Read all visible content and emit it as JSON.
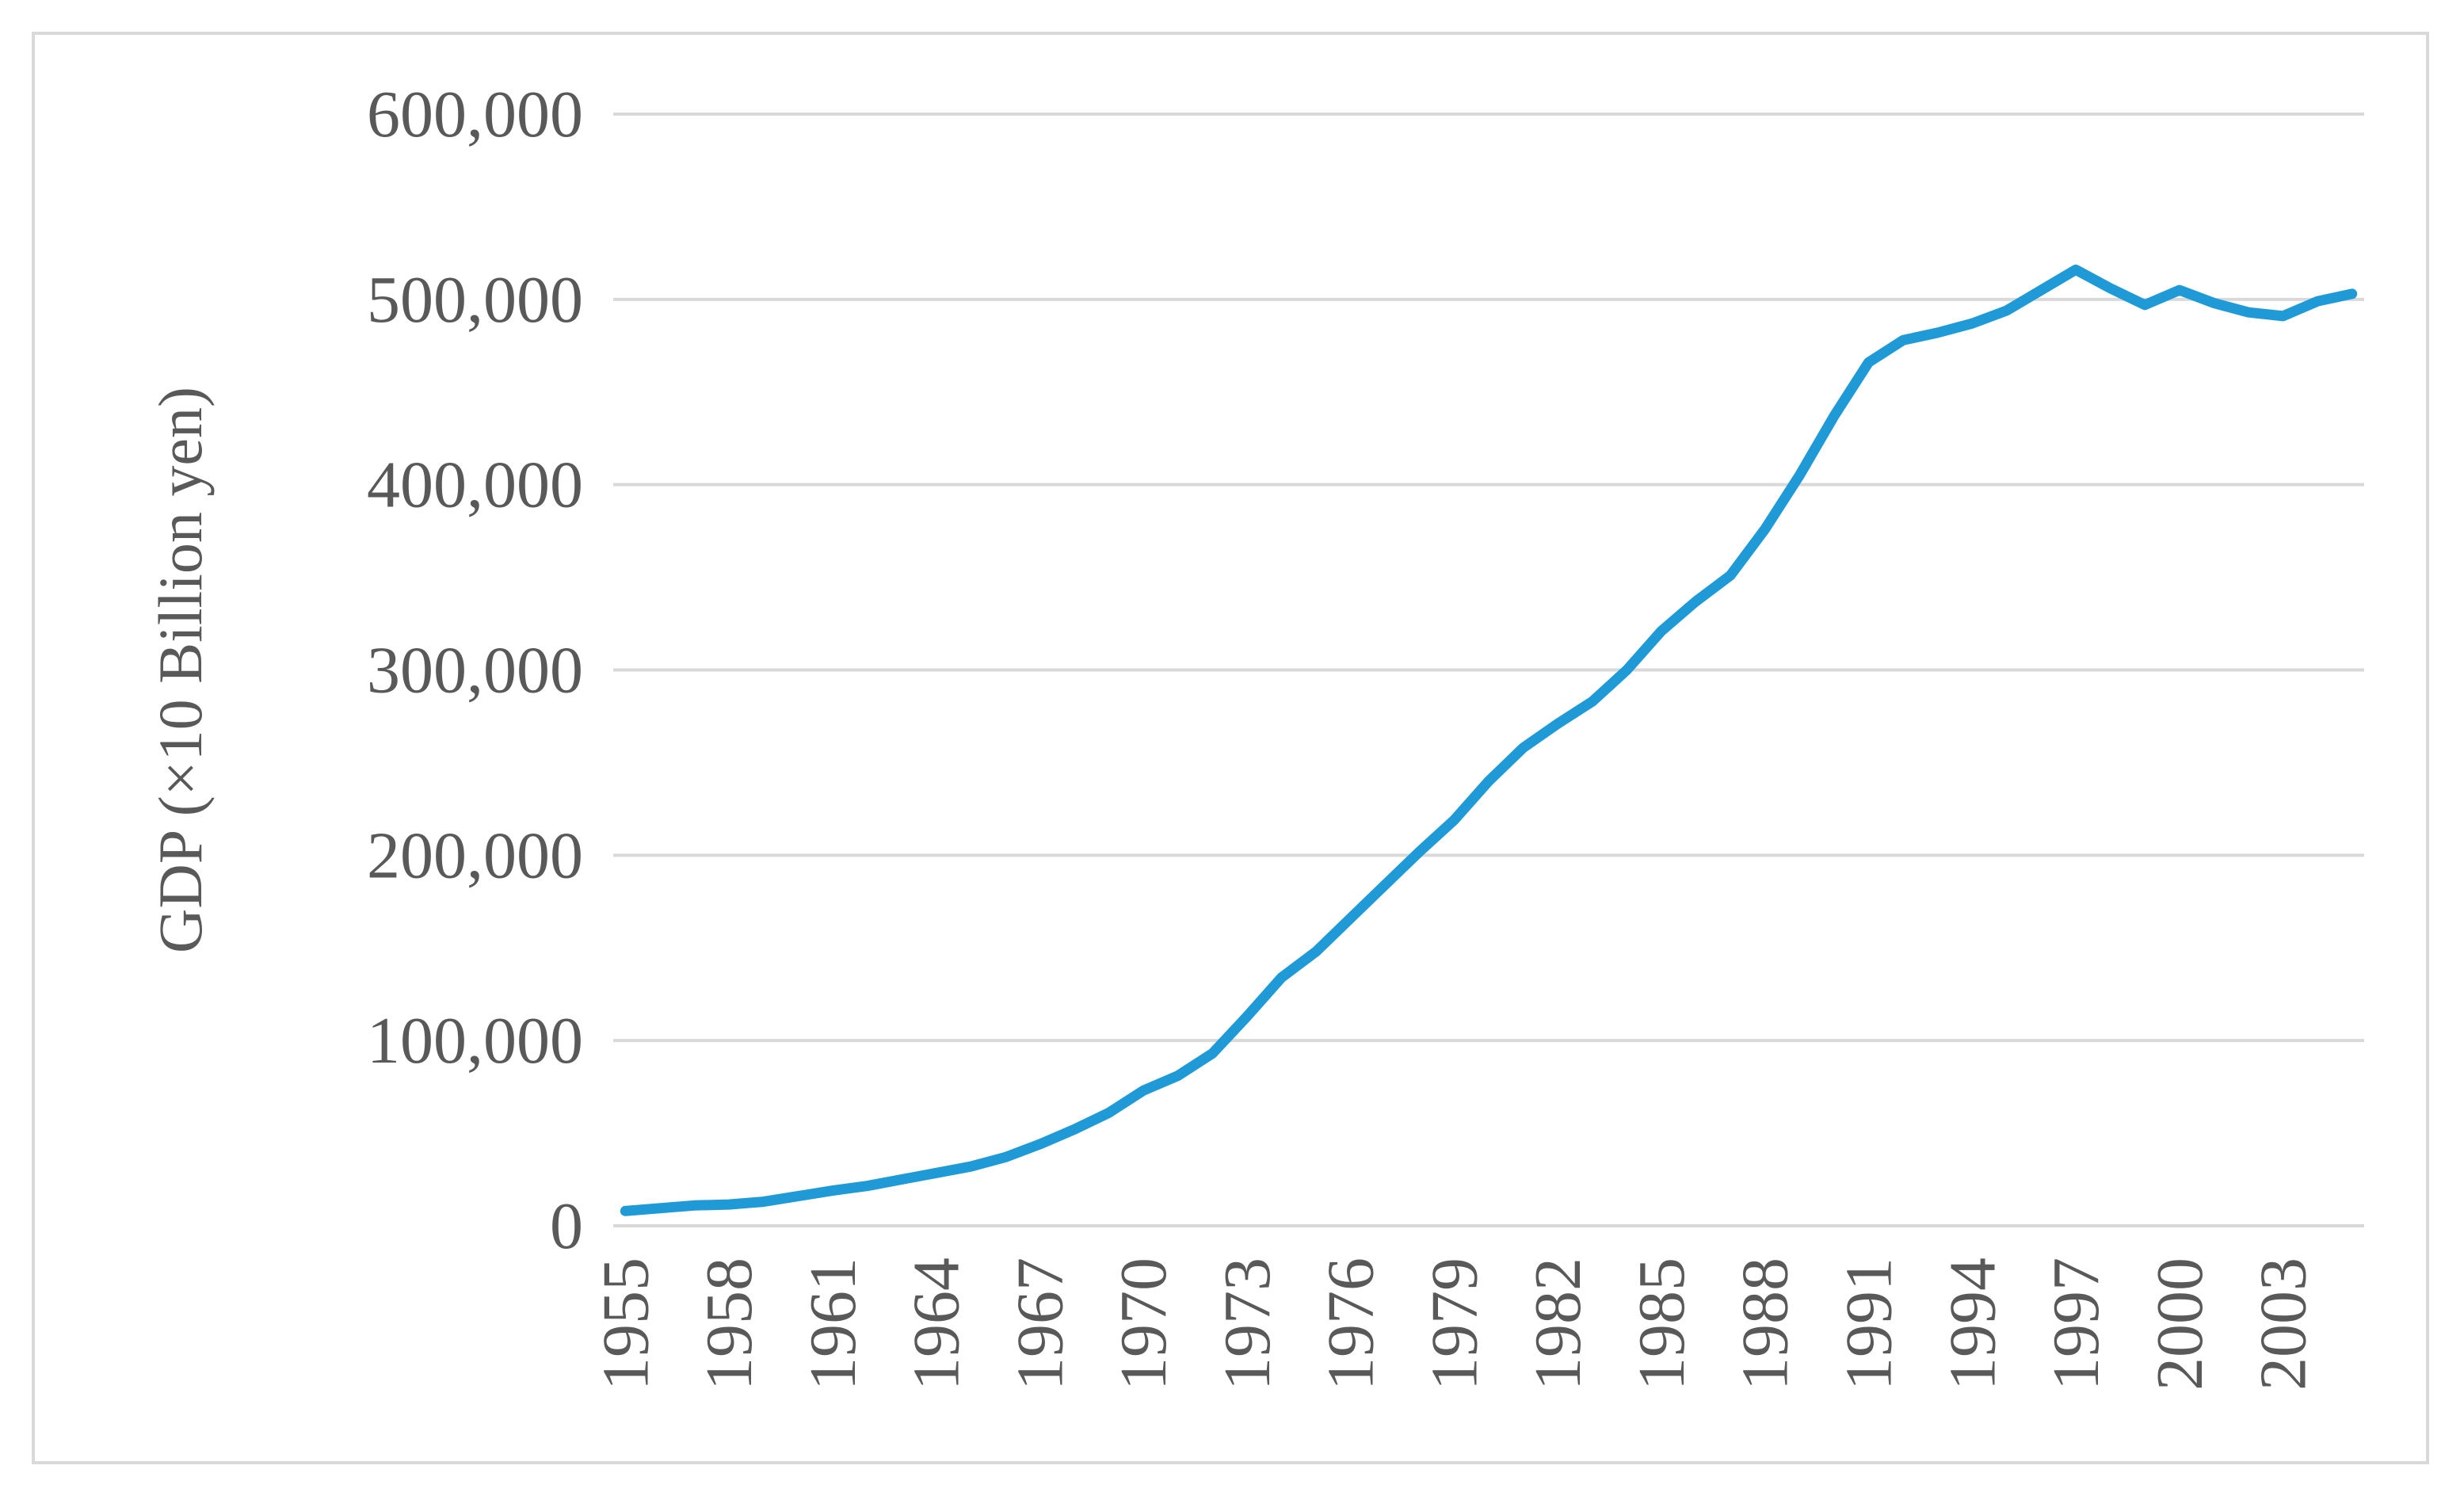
{
  "chart_data": {
    "type": "line",
    "title": "",
    "xlabel": "",
    "ylabel": "GDP (×10 Billion yen)",
    "ylim": [
      0,
      600000
    ],
    "yticks": [
      0,
      100000,
      200000,
      300000,
      400000,
      500000,
      600000
    ],
    "ytick_labels": [
      "0",
      "100,000",
      "200,000",
      "300,000",
      "400,000",
      "500,000",
      "600,000"
    ],
    "xticks": [
      1955,
      1958,
      1961,
      1964,
      1967,
      1970,
      1973,
      1976,
      1979,
      1982,
      1985,
      1988,
      1991,
      1994,
      1997,
      2000,
      2003
    ],
    "xtick_labels": [
      "1955",
      "1958",
      "1961",
      "1964",
      "1967",
      "1970",
      "1973",
      "1976",
      "1979",
      "1982",
      "1985",
      "1988",
      "1991",
      "1994",
      "1997",
      "2000",
      "2003"
    ],
    "grid": true,
    "color": "#1f9ad6",
    "series": [
      {
        "x": [
          1955,
          1956,
          1957,
          1958,
          1959,
          1960,
          1961,
          1962,
          1963,
          1964,
          1965,
          1966,
          1967,
          1968,
          1969,
          1970,
          1971,
          1972,
          1973,
          1974,
          1975,
          1976,
          1977,
          1978,
          1979,
          1980,
          1981,
          1982,
          1983,
          1984,
          1985,
          1986,
          1987,
          1988,
          1989,
          1990,
          1991,
          1992,
          1993,
          1994,
          1995,
          1996,
          1997,
          1998,
          1999,
          2000,
          2001,
          2002,
          2003,
          2004,
          2005
        ],
        "values": [
          8000,
          9500,
          11000,
          11500,
          13000,
          16000,
          19000,
          21500,
          25000,
          28500,
          32000,
          37000,
          44000,
          52000,
          61000,
          73000,
          81000,
          93000,
          113000,
          134000,
          148000,
          166000,
          184000,
          202000,
          219000,
          240000,
          258000,
          271000,
          283000,
          300000,
          321000,
          337000,
          351000,
          376000,
          405000,
          437000,
          466000,
          478000,
          482000,
          487000,
          494000,
          505000,
          516000,
          506000,
          497000,
          505000,
          498000,
          493000,
          491000,
          499000,
          503000
        ]
      }
    ]
  }
}
